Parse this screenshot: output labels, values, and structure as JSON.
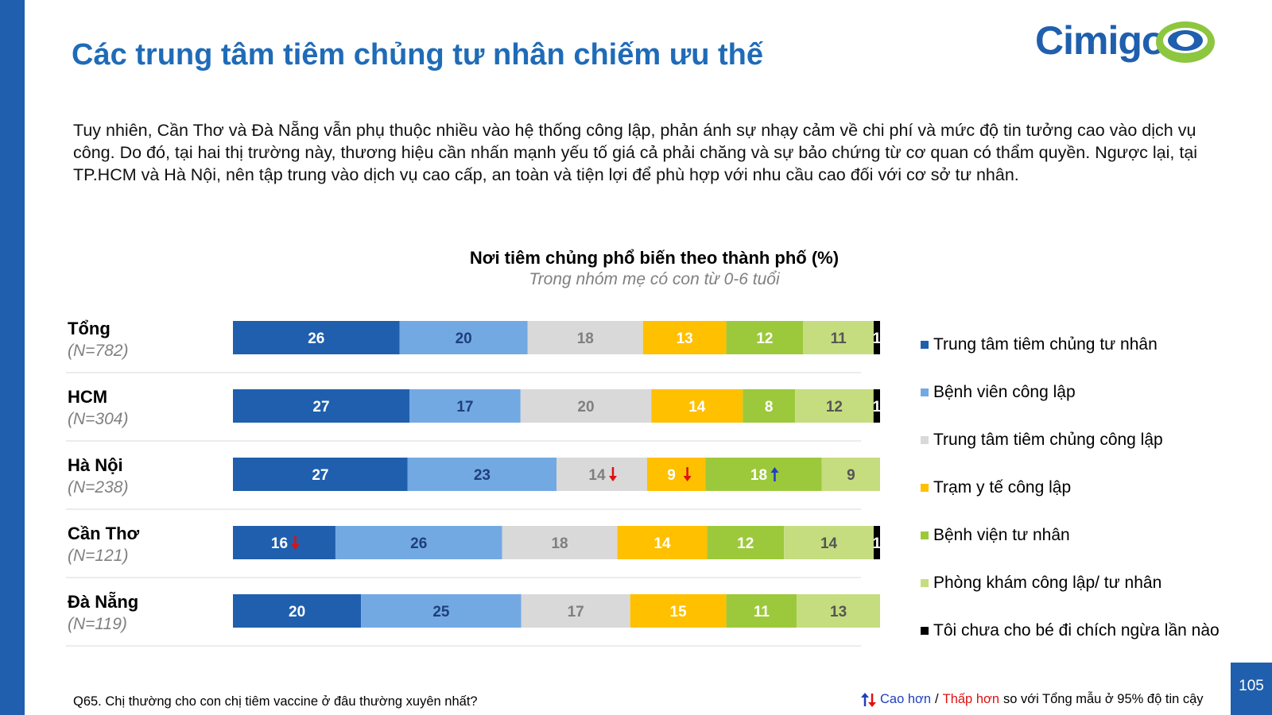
{
  "title": "Các trung tâm tiêm chủng tư nhân chiếm ưu thế",
  "logo": {
    "text": "Cimigo"
  },
  "intro": "Tuy nhiên, Cần Thơ và Đà Nẵng vẫn phụ thuộc nhiều vào hệ thống công lập, phản ánh sự nhạy cảm về chi phí và mức độ tin tưởng cao vào dịch vụ công. Do đó, tại hai thị trường này, thương hiệu cần nhấn mạnh yếu tố giá cả phải chăng và sự bảo chứng từ cơ quan có thẩm quyền. Ngược lại, tại TP.HCM và Hà Nội, nên tập trung vào dịch vụ cao cấp, an toàn và tiện lợi để phù hợp với nhu cầu cao đối với cơ sở tư nhân.",
  "chart_data": {
    "type": "bar",
    "orientation": "horizontal",
    "stacked": true,
    "title": "Nơi tiêm chủng phổ biến theo thành phố (%)",
    "subtitle": "Trong nhóm mẹ có con từ 0-6 tuổi",
    "xlim": [
      0,
      100
    ],
    "legend_position": "right",
    "categories": [
      "Tổng",
      "HCM",
      "Hà Nội",
      "Cần Thơ",
      "Đà Nẵng"
    ],
    "sample_sizes": [
      "(N=782)",
      "(N=304)",
      "(N=238)",
      "(N=121)",
      "(N=119)"
    ],
    "series": [
      {
        "name": "Trung tâm tiêm chủng tư nhân",
        "color": "#1f5fad",
        "label_color": "#ffffff",
        "values": [
          26,
          27,
          27,
          16,
          20
        ]
      },
      {
        "name": "Bệnh viên công lập",
        "color": "#72a9e3",
        "label_color": "#1f3f7a",
        "values": [
          20,
          17,
          23,
          26,
          25
        ]
      },
      {
        "name": "Trung tâm tiêm chủng công lập",
        "color": "#d9d9d9",
        "label_color": "#7f7f7f",
        "values": [
          18,
          20,
          14,
          18,
          17
        ]
      },
      {
        "name": "Trạm y tế công lập",
        "color": "#ffc000",
        "label_color": "#ffffff",
        "values": [
          13,
          14,
          9,
          14,
          15
        ]
      },
      {
        "name": "Bệnh viện tư nhân",
        "color": "#9cc93b",
        "label_color": "#ffffff",
        "values": [
          12,
          8,
          18,
          12,
          11
        ]
      },
      {
        "name": "Phòng khám công lập/ tư nhân",
        "color": "#c5dd7f",
        "label_color": "#555555",
        "values": [
          11,
          12,
          9,
          14,
          13
        ]
      },
      {
        "name": "Tôi chưa cho bé đi chích ngừa lần nào",
        "color": "#000000",
        "label_color": "#ffffff",
        "values": [
          1,
          1,
          0,
          1,
          0
        ]
      }
    ],
    "significance": [
      {
        "row": 2,
        "series": 2,
        "direction": "down"
      },
      {
        "row": 2,
        "series": 3,
        "direction": "down"
      },
      {
        "row": 2,
        "series": 4,
        "direction": "up"
      },
      {
        "row": 3,
        "series": 0,
        "direction": "down"
      }
    ]
  },
  "footer": {
    "question": "Q65. Chị thường cho con chị tiêm vaccine ở đâu thường xuyên nhất?",
    "sig_higher": "Cao hơn",
    "sig_separator": "/",
    "sig_lower": "Thấp hơn",
    "sig_rest": "so với Tổng mẫu ở 95% độ tin cậy",
    "page_number": "105"
  },
  "colors": {
    "brand_blue": "#1f5fad",
    "title_blue": "#1f6bb8",
    "logo_green": "#8dc63f",
    "arrow_up": "#1f3fbf",
    "arrow_down": "#e01010"
  }
}
